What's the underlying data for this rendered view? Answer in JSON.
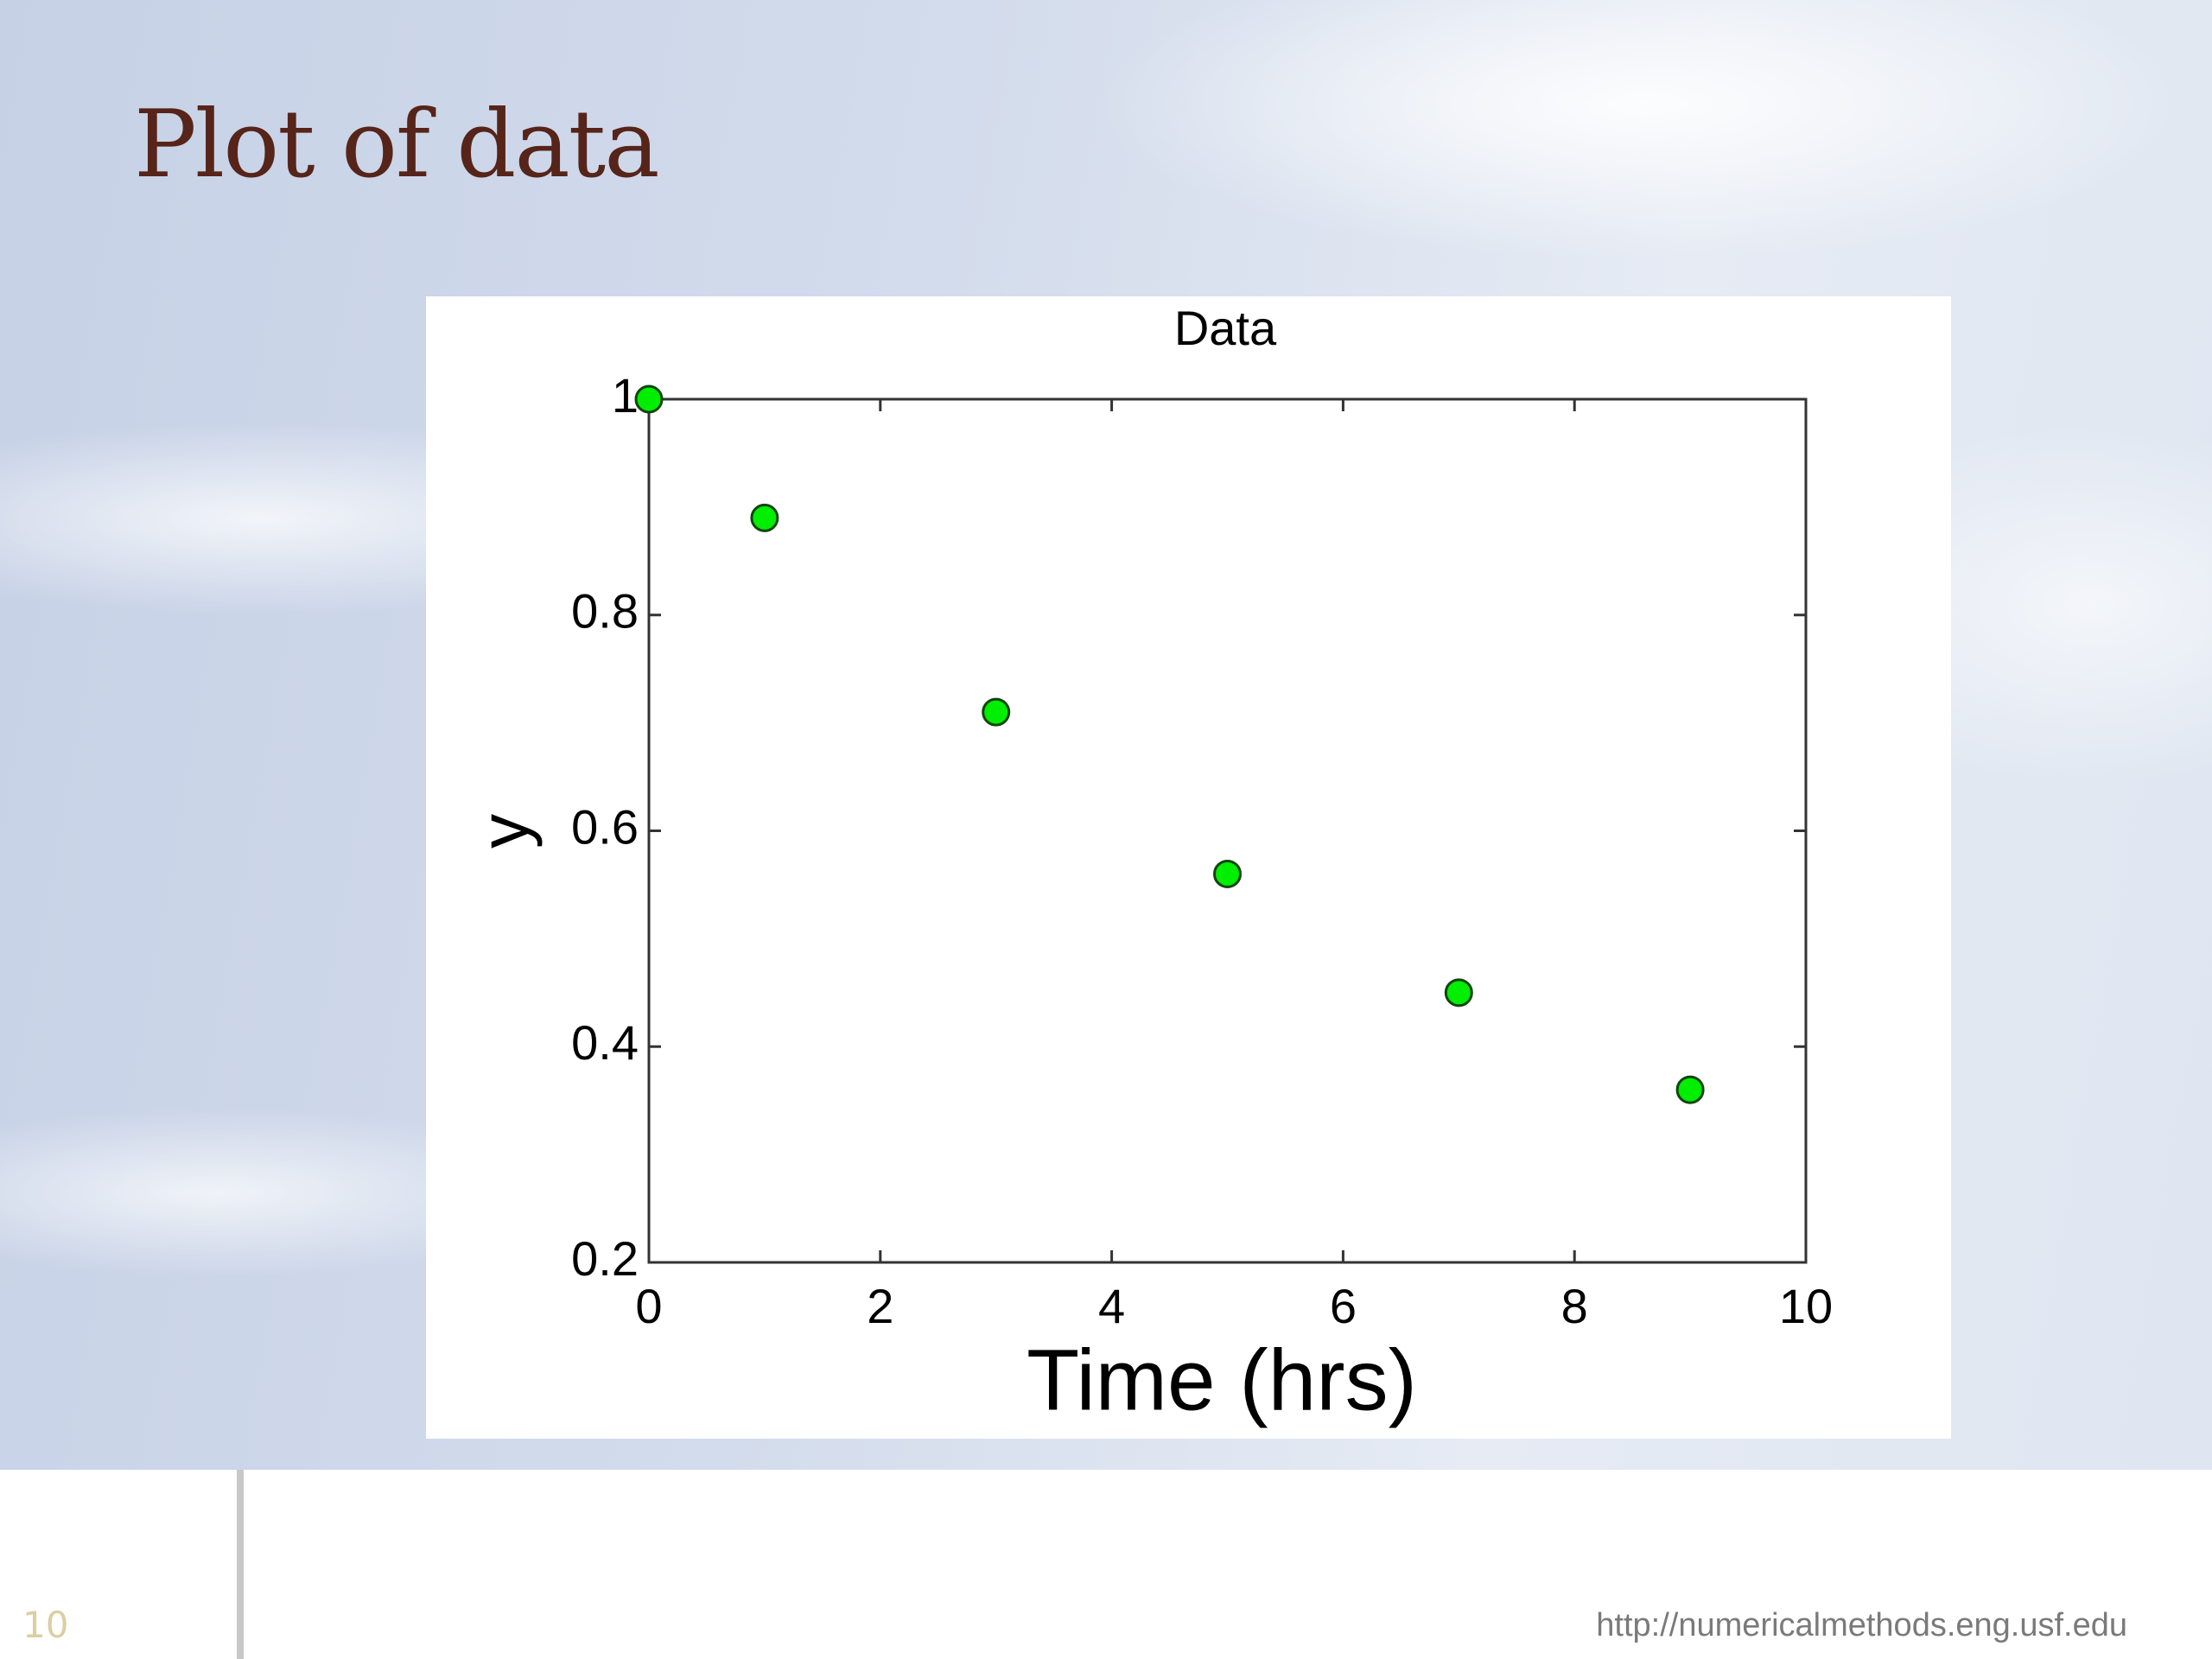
{
  "slide": {
    "title": "Plot of data",
    "page_number": "10",
    "footer": "http://numericalmethods.eng.usf.edu"
  },
  "chart_data": {
    "type": "scatter",
    "title": "Data",
    "x_label": "Time (hrs)",
    "y_label": "y",
    "x": [
      0,
      1,
      3,
      5,
      7,
      9
    ],
    "values": [
      1.0,
      0.89,
      0.71,
      0.56,
      0.45,
      0.36
    ],
    "color": "#00ee00",
    "xlim": [
      0,
      10
    ],
    "xticks": [
      0,
      2,
      4,
      6,
      8,
      10
    ],
    "ylim": [
      0.2,
      1
    ],
    "yticks": [
      0.2,
      0.4,
      0.6,
      0.8,
      1
    ],
    "grid": false
  }
}
